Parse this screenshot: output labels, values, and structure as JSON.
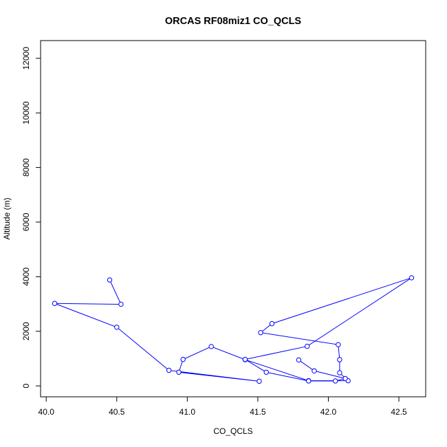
{
  "chart_data": {
    "type": "line",
    "title": "ORCAS RF08miz1 CO_QCLS",
    "xlabel": "CO_QCLS",
    "ylabel": "Altitude (m)",
    "xlim": [
      39.96,
      42.69
    ],
    "ylim": [
      -400,
      12650
    ],
    "xticks": [
      40.0,
      40.5,
      41.0,
      41.5,
      42.0,
      42.5
    ],
    "xtick_labels": [
      "40.0",
      "40.5",
      "41.0",
      "41.5",
      "42.0",
      "42.5"
    ],
    "yticks": [
      0,
      2000,
      4000,
      6000,
      8000,
      10000,
      12000
    ],
    "ytick_labels": [
      "0",
      "2000",
      "4000",
      "6000",
      "8000",
      "10000",
      "12000"
    ],
    "grid": false,
    "legend": "none",
    "color": "#0000ff",
    "markers": "open-circle",
    "series": [
      {
        "x": [
          40.45,
          40.53,
          40.06,
          40.5,
          40.87,
          41.51,
          40.94,
          40.97,
          41.17,
          41.41,
          41.86,
          42.14,
          42.08,
          42.08,
          42.07,
          41.52,
          41.6,
          42.59,
          41.85,
          41.41,
          41.56,
          41.86,
          42.05,
          42.12,
          41.9,
          41.79
        ],
        "y": [
          3880,
          2990,
          3020,
          2150,
          570,
          170,
          500,
          970,
          1440,
          960,
          190,
          190,
          480,
          960,
          1510,
          1950,
          2280,
          3960,
          1450,
          970,
          500,
          180,
          180,
          270,
          550,
          950
        ]
      }
    ]
  }
}
